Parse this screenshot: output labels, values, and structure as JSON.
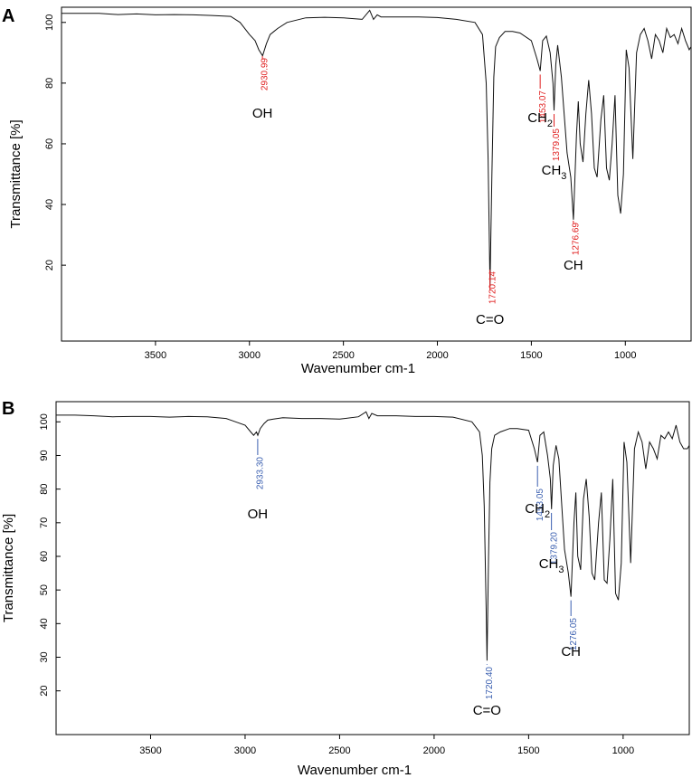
{
  "chart_data": [
    {
      "panel": "A",
      "type": "line",
      "xlabel": "Wavenumber cm-1",
      "ylabel": "Transmittance [%]",
      "xlim": [
        4000,
        650
      ],
      "ylim": [
        -5,
        105
      ],
      "xticks": [
        3500,
        3000,
        2500,
        2000,
        1500,
        1000
      ],
      "yticks": [
        20,
        40,
        60,
        80,
        100
      ],
      "annotation_color": "#e02020",
      "x": [
        4000,
        3900,
        3800,
        3700,
        3600,
        3500,
        3400,
        3300,
        3200,
        3100,
        3050,
        3000,
        2970,
        2950,
        2930,
        2910,
        2890,
        2870,
        2850,
        2800,
        2700,
        2600,
        2500,
        2400,
        2360,
        2340,
        2320,
        2300,
        2200,
        2100,
        2000,
        1900,
        1800,
        1760,
        1740,
        1730,
        1720,
        1710,
        1700,
        1690,
        1670,
        1640,
        1600,
        1560,
        1500,
        1470,
        1453,
        1440,
        1420,
        1400,
        1385,
        1379,
        1370,
        1360,
        1340,
        1310,
        1290,
        1276,
        1260,
        1250,
        1240,
        1225,
        1210,
        1195,
        1180,
        1165,
        1150,
        1130,
        1115,
        1100,
        1085,
        1070,
        1055,
        1040,
        1025,
        1010,
        995,
        980,
        960,
        940,
        920,
        900,
        880,
        860,
        840,
        820,
        800,
        780,
        760,
        740,
        720,
        700,
        680,
        660,
        650
      ],
      "series": [
        {
          "values": [
            103,
            103,
            103,
            102.6,
            102.8,
            102.5,
            102.6,
            102.5,
            102.3,
            102,
            100,
            96,
            94,
            91,
            89,
            93,
            96,
            97,
            98,
            100,
            101.5,
            101.7,
            101.5,
            101,
            104,
            101,
            102.5,
            101.8,
            101.8,
            101.8,
            101.6,
            101,
            100,
            96,
            80,
            55,
            13,
            50,
            82,
            92,
            95,
            97,
            97,
            96.5,
            94,
            88,
            84,
            94,
            95.5,
            90,
            80,
            71,
            86,
            92.5,
            82,
            57,
            49,
            35,
            63,
            74,
            60,
            54,
            70,
            81,
            70,
            52,
            49,
            68,
            76,
            52,
            48,
            60,
            76,
            43,
            37,
            50,
            91,
            85,
            55,
            90,
            96,
            98,
            94,
            88,
            96,
            94,
            90,
            98,
            95,
            96,
            93,
            98,
            94,
            91,
            92
          ]
        }
      ],
      "annotations": [
        {
          "num": "2930.99",
          "group": "OH",
          "sub": "",
          "x": 2930.99,
          "y": 89,
          "dir": "down"
        },
        {
          "num": "1720.14",
          "group": "C=O",
          "sub": "",
          "x": 1720.14,
          "y": 13,
          "dir": "down"
        },
        {
          "num": "1453.07",
          "group": "CH",
          "sub": "2",
          "x": 1453.07,
          "y": 84,
          "dir": "down"
        },
        {
          "num": "1379.05",
          "group": "CH",
          "sub": "3",
          "x": 1379.05,
          "y": 71,
          "dir": "down"
        },
        {
          "num": "1276.69",
          "group": "CH",
          "sub": "",
          "x": 1276.69,
          "y": 35,
          "dir": "down"
        }
      ]
    },
    {
      "panel": "B",
      "type": "line",
      "xlabel": "Wavenumber cm-1",
      "ylabel": "Transmittance [%]",
      "xlim": [
        4000,
        650
      ],
      "ylim": [
        7,
        106
      ],
      "xticks": [
        3500,
        3000,
        2500,
        2000,
        1500,
        1000
      ],
      "yticks": [
        20,
        30,
        40,
        50,
        60,
        70,
        80,
        90,
        100
      ],
      "annotation_color": "#3a5fb0",
      "x": [
        4000,
        3900,
        3800,
        3700,
        3600,
        3500,
        3400,
        3300,
        3200,
        3100,
        3050,
        3000,
        2970,
        2955,
        2940,
        2933,
        2920,
        2900,
        2880,
        2850,
        2800,
        2700,
        2600,
        2500,
        2400,
        2360,
        2345,
        2330,
        2300,
        2200,
        2100,
        2000,
        1900,
        1800,
        1760,
        1745,
        1735,
        1725,
        1720,
        1712,
        1705,
        1695,
        1680,
        1650,
        1600,
        1560,
        1500,
        1470,
        1453,
        1440,
        1420,
        1400,
        1385,
        1379,
        1370,
        1355,
        1340,
        1310,
        1290,
        1276,
        1260,
        1250,
        1240,
        1225,
        1210,
        1195,
        1180,
        1165,
        1150,
        1130,
        1115,
        1100,
        1085,
        1070,
        1055,
        1040,
        1025,
        1010,
        995,
        980,
        960,
        940,
        920,
        900,
        880,
        860,
        840,
        820,
        800,
        780,
        760,
        740,
        720,
        700,
        680,
        660,
        650
      ],
      "series": [
        {
          "values": [
            102,
            102,
            101.8,
            101.5,
            101.6,
            101.6,
            101.4,
            101.6,
            101.5,
            101,
            100,
            99,
            97,
            96,
            97,
            96,
            98,
            99.5,
            100.5,
            100.8,
            101.2,
            101,
            101,
            100.8,
            101.5,
            103,
            101,
            102.5,
            101.8,
            101.8,
            101.6,
            101.6,
            101.4,
            100,
            97,
            90,
            75,
            45,
            29,
            60,
            82,
            92,
            96,
            97,
            98,
            98,
            97.5,
            92,
            88,
            96,
            97,
            90,
            83,
            74,
            87,
            93,
            89,
            62,
            55,
            48,
            70,
            79,
            60,
            56,
            77,
            83,
            72,
            55,
            53,
            70,
            79,
            53,
            52,
            65,
            83,
            49,
            47,
            58,
            94,
            88,
            58,
            92,
            97,
            94,
            86,
            94,
            92,
            89,
            96,
            95,
            97,
            95,
            99,
            94,
            92,
            92,
            93
          ]
        }
      ],
      "annotations": [
        {
          "num": "2933.30",
          "group": "OH",
          "sub": "",
          "x": 2933.3,
          "y": 96,
          "dir": "down"
        },
        {
          "num": "1720.40",
          "group": "C=O",
          "sub": "",
          "x": 1720.4,
          "y": 29,
          "dir": "down"
        },
        {
          "num": "1453.05",
          "group": "CH",
          "sub": "2",
          "x": 1453.05,
          "y": 88,
          "dir": "down"
        },
        {
          "num": "1379.20",
          "group": "CH",
          "sub": "3",
          "x": 1379.2,
          "y": 74,
          "dir": "down"
        },
        {
          "num": "1276.05",
          "group": "CH",
          "sub": "",
          "x": 1276.05,
          "y": 48,
          "dir": "down"
        }
      ]
    }
  ]
}
